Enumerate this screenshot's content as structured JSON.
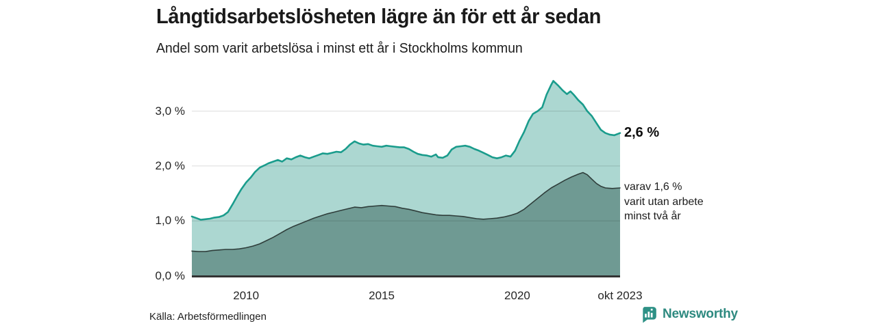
{
  "title": "Långtidsarbetslösheten lägre än för ett år sedan",
  "subtitle": "Andel som varit arbetslösa i minst ett år i Stockholms kommun",
  "source": "Källa: Arbetsförmedlingen",
  "branding": {
    "name": "Newsworthy",
    "icon": "newsworthy-speech-bubble-bar-chart-icon",
    "color": "#2E8A80",
    "icon_color": "#2E9186"
  },
  "chart_data": {
    "type": "area",
    "title": "Långtidsarbetslösheten lägre än för ett år sedan",
    "subtitle": "Andel som varit arbetslösa i minst ett år i Stockholms kommun",
    "legend_position": "none",
    "grid": true,
    "x_axis": {
      "range": [
        2008.0,
        2023.79
      ],
      "ticks": [
        {
          "x": 2010,
          "label": "2010"
        },
        {
          "x": 2015,
          "label": "2015"
        },
        {
          "x": 2020,
          "label": "2020"
        },
        {
          "x": 2023.79,
          "label": "okt 2023"
        }
      ]
    },
    "y_axis": {
      "range": [
        0,
        3.75
      ],
      "unit": "%",
      "ticks": [
        {
          "value": 0,
          "label": "0,0 %"
        },
        {
          "value": 1,
          "label": "1,0 %"
        },
        {
          "value": 2,
          "label": "2,0 %"
        },
        {
          "value": 3,
          "label": "3,0 %"
        }
      ]
    },
    "series": [
      {
        "id": "arbetslosa-minst-ett-ar",
        "end_value": 2.6,
        "end_label": "2,6 %",
        "line_color": "#1A9C8C",
        "fill_color": "#ACD7D1",
        "points": [
          [
            2008.0,
            1.08
          ],
          [
            2008.17,
            1.05
          ],
          [
            2008.33,
            1.02
          ],
          [
            2008.5,
            1.03
          ],
          [
            2008.67,
            1.04
          ],
          [
            2008.83,
            1.06
          ],
          [
            2009.0,
            1.07
          ],
          [
            2009.17,
            1.1
          ],
          [
            2009.33,
            1.16
          ],
          [
            2009.5,
            1.3
          ],
          [
            2009.67,
            1.45
          ],
          [
            2009.83,
            1.58
          ],
          [
            2010.0,
            1.7
          ],
          [
            2010.17,
            1.79
          ],
          [
            2010.33,
            1.89
          ],
          [
            2010.5,
            1.97
          ],
          [
            2010.67,
            2.01
          ],
          [
            2010.83,
            2.05
          ],
          [
            2011.0,
            2.08
          ],
          [
            2011.17,
            2.11
          ],
          [
            2011.33,
            2.08
          ],
          [
            2011.5,
            2.14
          ],
          [
            2011.67,
            2.12
          ],
          [
            2011.83,
            2.16
          ],
          [
            2012.0,
            2.19
          ],
          [
            2012.17,
            2.16
          ],
          [
            2012.33,
            2.14
          ],
          [
            2012.5,
            2.17
          ],
          [
            2012.67,
            2.2
          ],
          [
            2012.83,
            2.23
          ],
          [
            2013.0,
            2.22
          ],
          [
            2013.17,
            2.24
          ],
          [
            2013.33,
            2.26
          ],
          [
            2013.5,
            2.25
          ],
          [
            2013.67,
            2.31
          ],
          [
            2013.83,
            2.39
          ],
          [
            2014.0,
            2.45
          ],
          [
            2014.17,
            2.41
          ],
          [
            2014.33,
            2.39
          ],
          [
            2014.5,
            2.4
          ],
          [
            2014.67,
            2.37
          ],
          [
            2014.83,
            2.36
          ],
          [
            2015.0,
            2.35
          ],
          [
            2015.17,
            2.37
          ],
          [
            2015.33,
            2.36
          ],
          [
            2015.5,
            2.35
          ],
          [
            2015.67,
            2.34
          ],
          [
            2015.83,
            2.34
          ],
          [
            2016.0,
            2.31
          ],
          [
            2016.17,
            2.26
          ],
          [
            2016.33,
            2.22
          ],
          [
            2016.5,
            2.2
          ],
          [
            2016.67,
            2.19
          ],
          [
            2016.83,
            2.17
          ],
          [
            2017.0,
            2.21
          ],
          [
            2017.08,
            2.16
          ],
          [
            2017.25,
            2.15
          ],
          [
            2017.42,
            2.19
          ],
          [
            2017.58,
            2.3
          ],
          [
            2017.75,
            2.35
          ],
          [
            2017.92,
            2.36
          ],
          [
            2018.08,
            2.37
          ],
          [
            2018.25,
            2.35
          ],
          [
            2018.42,
            2.31
          ],
          [
            2018.58,
            2.28
          ],
          [
            2018.75,
            2.24
          ],
          [
            2018.92,
            2.2
          ],
          [
            2019.08,
            2.16
          ],
          [
            2019.25,
            2.14
          ],
          [
            2019.42,
            2.16
          ],
          [
            2019.58,
            2.19
          ],
          [
            2019.75,
            2.17
          ],
          [
            2019.92,
            2.28
          ],
          [
            2020.08,
            2.46
          ],
          [
            2020.25,
            2.62
          ],
          [
            2020.42,
            2.82
          ],
          [
            2020.58,
            2.95
          ],
          [
            2020.75,
            3.0
          ],
          [
            2020.92,
            3.07
          ],
          [
            2021.08,
            3.3
          ],
          [
            2021.25,
            3.48
          ],
          [
            2021.33,
            3.55
          ],
          [
            2021.5,
            3.47
          ],
          [
            2021.67,
            3.38
          ],
          [
            2021.83,
            3.31
          ],
          [
            2021.96,
            3.36
          ],
          [
            2022.08,
            3.3
          ],
          [
            2022.25,
            3.2
          ],
          [
            2022.42,
            3.12
          ],
          [
            2022.58,
            3.0
          ],
          [
            2022.75,
            2.91
          ],
          [
            2022.92,
            2.78
          ],
          [
            2023.08,
            2.66
          ],
          [
            2023.25,
            2.6
          ],
          [
            2023.42,
            2.57
          ],
          [
            2023.58,
            2.56
          ],
          [
            2023.79,
            2.6
          ]
        ]
      },
      {
        "id": "arbetslosa-minst-tva-ar",
        "end_value": 1.6,
        "end_label": "varav 1,6 %\nvarit utan arbete\nminst två år",
        "line_color": "#2F3E3B",
        "fill_color": "#6F9A93",
        "points": [
          [
            2008.0,
            0.45
          ],
          [
            2008.25,
            0.44
          ],
          [
            2008.5,
            0.44
          ],
          [
            2008.75,
            0.46
          ],
          [
            2009.0,
            0.47
          ],
          [
            2009.25,
            0.48
          ],
          [
            2009.5,
            0.48
          ],
          [
            2009.75,
            0.49
          ],
          [
            2010.0,
            0.51
          ],
          [
            2010.25,
            0.54
          ],
          [
            2010.5,
            0.58
          ],
          [
            2010.75,
            0.64
          ],
          [
            2011.0,
            0.7
          ],
          [
            2011.25,
            0.77
          ],
          [
            2011.5,
            0.84
          ],
          [
            2011.75,
            0.9
          ],
          [
            2012.0,
            0.95
          ],
          [
            2012.25,
            1.0
          ],
          [
            2012.5,
            1.05
          ],
          [
            2012.75,
            1.09
          ],
          [
            2013.0,
            1.13
          ],
          [
            2013.25,
            1.16
          ],
          [
            2013.5,
            1.19
          ],
          [
            2013.75,
            1.22
          ],
          [
            2014.0,
            1.25
          ],
          [
            2014.25,
            1.24
          ],
          [
            2014.5,
            1.26
          ],
          [
            2014.75,
            1.27
          ],
          [
            2015.0,
            1.28
          ],
          [
            2015.25,
            1.27
          ],
          [
            2015.5,
            1.26
          ],
          [
            2015.75,
            1.23
          ],
          [
            2016.0,
            1.21
          ],
          [
            2016.25,
            1.18
          ],
          [
            2016.5,
            1.15
          ],
          [
            2016.75,
            1.13
          ],
          [
            2017.0,
            1.11
          ],
          [
            2017.25,
            1.1
          ],
          [
            2017.5,
            1.1
          ],
          [
            2017.75,
            1.09
          ],
          [
            2018.0,
            1.08
          ],
          [
            2018.25,
            1.06
          ],
          [
            2018.5,
            1.04
          ],
          [
            2018.75,
            1.03
          ],
          [
            2019.0,
            1.04
          ],
          [
            2019.25,
            1.05
          ],
          [
            2019.5,
            1.07
          ],
          [
            2019.75,
            1.1
          ],
          [
            2020.0,
            1.14
          ],
          [
            2020.25,
            1.21
          ],
          [
            2020.5,
            1.31
          ],
          [
            2020.75,
            1.41
          ],
          [
            2021.0,
            1.51
          ],
          [
            2021.25,
            1.6
          ],
          [
            2021.5,
            1.67
          ],
          [
            2021.75,
            1.74
          ],
          [
            2022.0,
            1.8
          ],
          [
            2022.25,
            1.85
          ],
          [
            2022.42,
            1.88
          ],
          [
            2022.58,
            1.84
          ],
          [
            2022.75,
            1.76
          ],
          [
            2022.92,
            1.68
          ],
          [
            2023.08,
            1.63
          ],
          [
            2023.25,
            1.6
          ],
          [
            2023.5,
            1.59
          ],
          [
            2023.79,
            1.6
          ]
        ]
      }
    ]
  }
}
